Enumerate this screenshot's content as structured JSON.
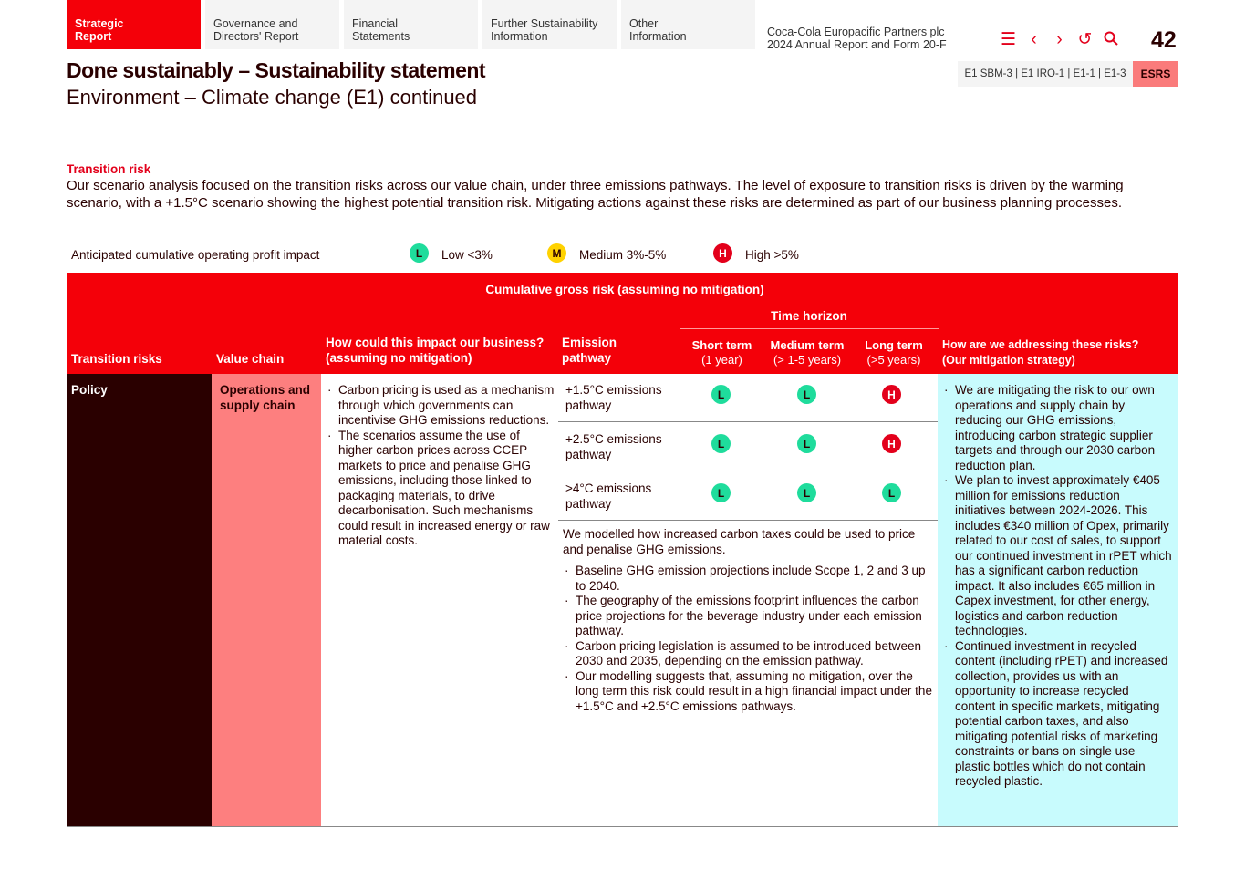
{
  "nav": {
    "tabs": [
      {
        "label1": "Strategic",
        "label2": "Report",
        "active": true
      },
      {
        "label1": "Governance and",
        "label2": "Directors' Report"
      },
      {
        "label1": "Financial",
        "label2": "Statements"
      },
      {
        "label1": "Further Sustainability",
        "label2": "Information"
      },
      {
        "label1": "Other",
        "label2": "Information"
      }
    ],
    "company_line1": "Coca-Cola Europacific Partners plc",
    "company_line2": "2024 Annual Report and Form 20-F",
    "icons": [
      "menu-icon",
      "chevron-left-icon",
      "chevron-right-icon",
      "undo-icon",
      "search-icon"
    ],
    "page_number": "42",
    "refs": "E1 SBM-3 | E1 IRO-1 | E1-1 | E1-3",
    "esrs": "ESRS"
  },
  "title": "Done sustainably – Sustainability statement",
  "subtitle": "Environment – Climate change (E1) continued",
  "section_title": "Transition risk",
  "intro": "Our scenario analysis focused on the transition risks across our value chain, under three emissions pathways. The level of exposure to transition risks is driven by the warming scenario, with a +1.5°C scenario showing the highest potential transition risk. Mitigating actions against these risks are determined as part of our business planning processes.",
  "legend": {
    "label": "Anticipated cumulative operating profit impact",
    "items": [
      {
        "letter": "L",
        "text": "Low <3%"
      },
      {
        "letter": "M",
        "text": "Medium 3%-5%"
      },
      {
        "letter": "H",
        "text": "High >5%"
      }
    ]
  },
  "colors": {
    "L": "#1fdc9c",
    "M": "#ffd200",
    "H": "#e3001b",
    "brand_red": "#f40009",
    "dark": "#2a0000",
    "salmon": "#fd7f7f",
    "cyan": "#c8fbfd"
  },
  "table": {
    "group_header": "Cumulative gross risk (assuming no mitigation)",
    "time_horizon": "Time horizon",
    "headers": {
      "risk": "Transition risks",
      "chain": "Value chain",
      "impact1": "How could this impact our business?",
      "impact2": "(assuming no mitigation)",
      "path1": "Emission",
      "path2": "pathway",
      "short": "Short term",
      "short_sub": "(1 year)",
      "medium": "Medium term",
      "medium_sub": "(> 1-5 years)",
      "long": "Long  term",
      "long_sub": "(>5 years)",
      "mit1": "How  are we addressing these risks?",
      "mit2": "(Our mitigation strategy)"
    },
    "risk": "Policy",
    "chain": "Operations and supply chain",
    "impacts": [
      "Carbon pricing is used as a mechanism through which governments can incentivise GHG emissions reductions.",
      "The scenarios assume the use of higher carbon prices across CCEP markets to price and penalise GHG emissions, including those linked to packaging materials, to drive decarbonisation. Such mechanisms could result in increased energy or raw material costs."
    ],
    "pathways": [
      {
        "name": "+1.5°C emissions pathway",
        "short": "L",
        "medium": "L",
        "long": "H"
      },
      {
        "name": "+2.5°C emissions pathway",
        "short": "L",
        "medium": "L",
        "long": "H"
      },
      {
        "name": ">4°C emissions pathway",
        "short": "L",
        "medium": "L",
        "long": "L"
      }
    ],
    "model_note": "We modelled how increased carbon taxes could be used to price and penalise GHG emissions.",
    "model_points": [
      "Baseline GHG emission projections include Scope 1, 2 and 3 up to 2040.",
      "The geography of the emissions footprint influences the carbon price projections for the beverage industry under each emission pathway.",
      "Carbon pricing legislation is assumed to be introduced between 2030 and 2035, depending on the emission pathway.",
      "Our modelling suggests that, assuming no mitigation, over the long term this risk could result in a high financial impact under the +1.5°C and +2.5°C emissions pathways."
    ],
    "mitigation": [
      "We are mitigating the risk to our own operations and supply chain by reducing our GHG emissions, introducing carbon strategic supplier targets and through our 2030 carbon reduction plan.",
      "We plan to invest approximately €405 million for emissions reduction initiatives between 2024-2026. This includes €340 million of Opex, primarily related to our cost of sales, to support our continued investment in rPET which has a significant carbon reduction impact. It also includes €65 million in Capex investment, for other energy, logistics and carbon reduction technologies.",
      "Continued investment in recycled content (including rPET) and increased collection, provides us with an opportunity to increase recycled content in specific markets, mitigating potential carbon taxes, and also mitigating potential risks of marketing constraints or bans on single use plastic bottles which do not contain recycled plastic."
    ]
  }
}
